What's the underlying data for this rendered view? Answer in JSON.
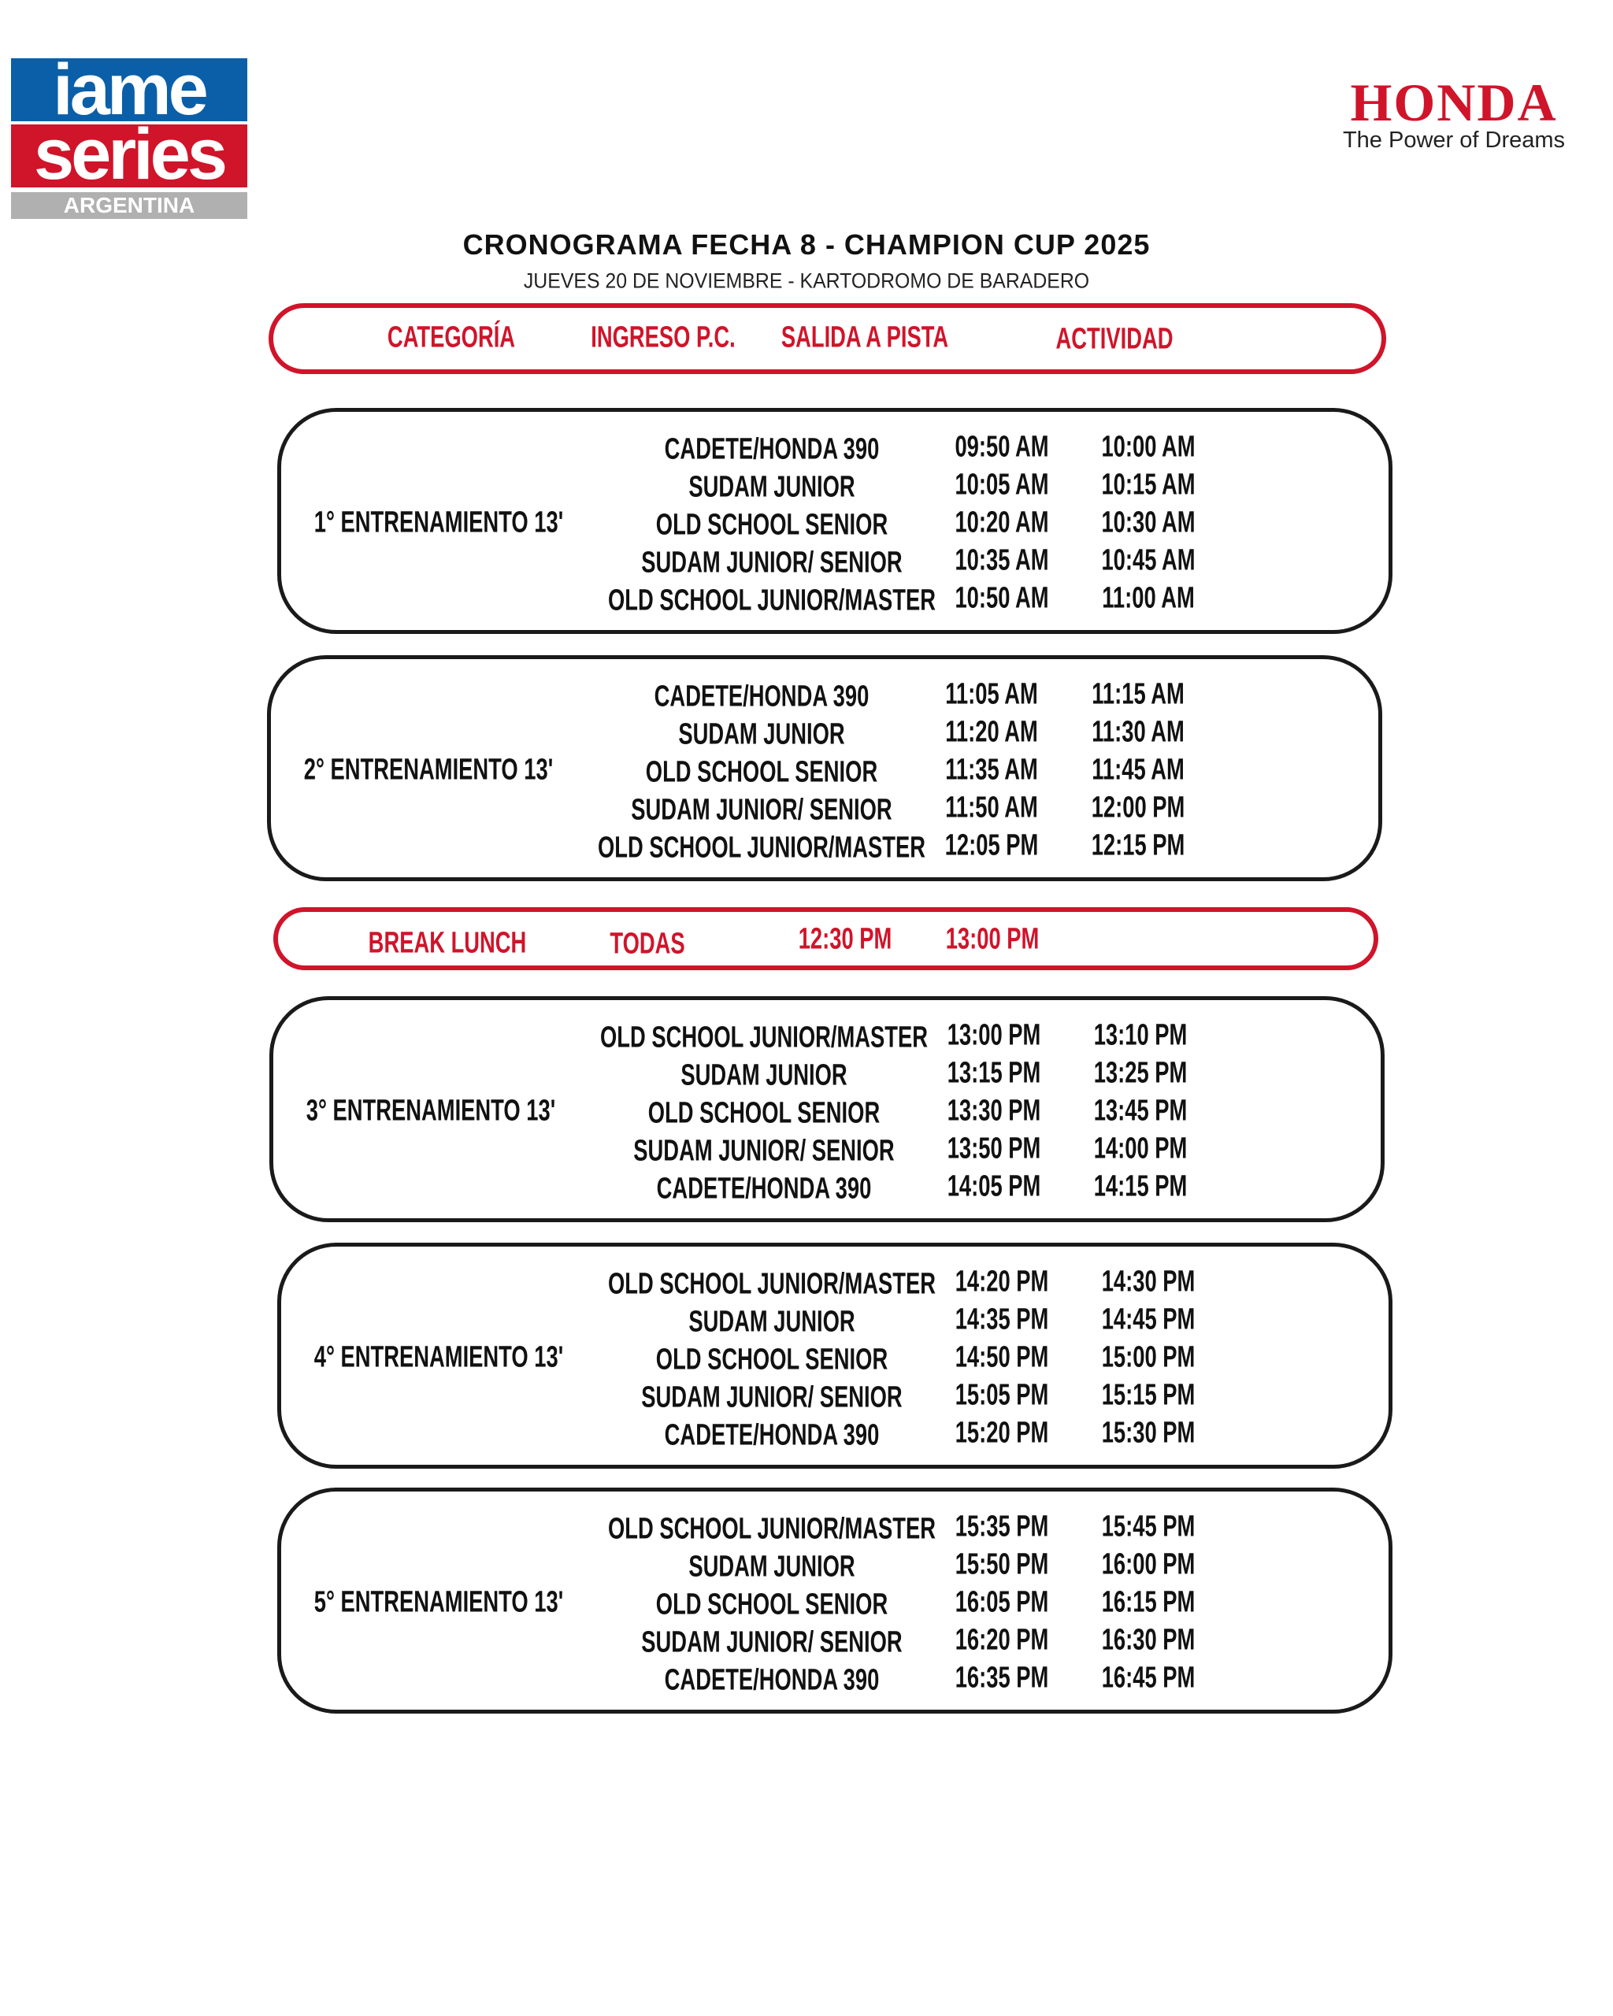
{
  "logos": {
    "iame": {
      "line1": "iame",
      "line2": "series",
      "line3": "ARGENTINA",
      "blue": "#0a5fa8",
      "red": "#d0142a"
    },
    "honda": {
      "wordmark": "HONDA",
      "tagline": "The Power of Dreams",
      "color": "#d0142a"
    }
  },
  "title": "CRONOGRAMA FECHA 8 - CHAMPION CUP 2025",
  "subtitle": "JUEVES 20 DE NOVIEMBRE - KARTODROMO DE BARADERO",
  "header": {
    "categoria": "CATEGORÍA",
    "ingreso": "INGRESO P.C.",
    "salida": "SALIDA A PISTA",
    "actividad": "ACTIVIDAD"
  },
  "accent_color": "#d0142a",
  "blocks": [
    {
      "label": "1° ENTRENAMIENTO 13'",
      "rows": [
        {
          "category": "CADETE/HONDA 390",
          "ingreso": "09:50 AM",
          "salida": "10:00 AM"
        },
        {
          "category": "SUDAM JUNIOR",
          "ingreso": "10:05 AM",
          "salida": "10:15 AM"
        },
        {
          "category": "OLD SCHOOL SENIOR",
          "ingreso": "10:20 AM",
          "salida": "10:30 AM"
        },
        {
          "category": "SUDAM JUNIOR/ SENIOR",
          "ingreso": "10:35 AM",
          "salida": "10:45 AM"
        },
        {
          "category": "OLD SCHOOL JUNIOR/MASTER",
          "ingreso": "10:50 AM",
          "salida": "11:00 AM"
        }
      ]
    },
    {
      "label": "2° ENTRENAMIENTO 13'",
      "rows": [
        {
          "category": "CADETE/HONDA 390",
          "ingreso": "11:05 AM",
          "salida": "11:15 AM"
        },
        {
          "category": "SUDAM JUNIOR",
          "ingreso": "11:20 AM",
          "salida": "11:30 AM"
        },
        {
          "category": "OLD SCHOOL SENIOR",
          "ingreso": "11:35 AM",
          "salida": "11:45 AM"
        },
        {
          "category": "SUDAM JUNIOR/ SENIOR",
          "ingreso": "11:50 AM",
          "salida": "12:00 PM"
        },
        {
          "category": "OLD SCHOOL JUNIOR/MASTER",
          "ingreso": "12:05 PM",
          "salida": "12:15 PM"
        }
      ]
    },
    {
      "label": "3° ENTRENAMIENTO 13'",
      "rows": [
        {
          "category": "OLD SCHOOL JUNIOR/MASTER",
          "ingreso": "13:00 PM",
          "salida": "13:10 PM"
        },
        {
          "category": "SUDAM JUNIOR",
          "ingreso": "13:15 PM",
          "salida": "13:25 PM"
        },
        {
          "category": "OLD SCHOOL SENIOR",
          "ingreso": "13:30 PM",
          "salida": "13:45 PM"
        },
        {
          "category": "SUDAM JUNIOR/ SENIOR",
          "ingreso": "13:50 PM",
          "salida": "14:00 PM"
        },
        {
          "category": "CADETE/HONDA 390",
          "ingreso": "14:05 PM",
          "salida": "14:15 PM"
        }
      ]
    },
    {
      "label": "4° ENTRENAMIENTO 13'",
      "rows": [
        {
          "category": "OLD SCHOOL JUNIOR/MASTER",
          "ingreso": "14:20 PM",
          "salida": "14:30 PM"
        },
        {
          "category": "SUDAM JUNIOR",
          "ingreso": "14:35 PM",
          "salida": "14:45 PM"
        },
        {
          "category": "OLD SCHOOL SENIOR",
          "ingreso": "14:50 PM",
          "salida": "15:00 PM"
        },
        {
          "category": "SUDAM JUNIOR/ SENIOR",
          "ingreso": "15:05 PM",
          "salida": "15:15 PM"
        },
        {
          "category": "CADETE/HONDA 390",
          "ingreso": "15:20 PM",
          "salida": "15:30 PM"
        }
      ]
    },
    {
      "label": "5° ENTRENAMIENTO 13'",
      "rows": [
        {
          "category": "OLD SCHOOL JUNIOR/MASTER",
          "ingreso": "15:35 PM",
          "salida": "15:45 PM"
        },
        {
          "category": "SUDAM JUNIOR",
          "ingreso": "15:50 PM",
          "salida": "16:00 PM"
        },
        {
          "category": "OLD SCHOOL SENIOR",
          "ingreso": "16:05 PM",
          "salida": "16:15 PM"
        },
        {
          "category": "SUDAM JUNIOR/ SENIOR",
          "ingreso": "16:20 PM",
          "salida": "16:30 PM"
        },
        {
          "category": "CADETE/HONDA 390",
          "ingreso": "16:35 PM",
          "salida": "16:45 PM"
        }
      ]
    }
  ],
  "break": {
    "label": "BREAK LUNCH",
    "category": "TODAS",
    "ingreso": "12:30 PM",
    "salida": "13:00 PM"
  }
}
